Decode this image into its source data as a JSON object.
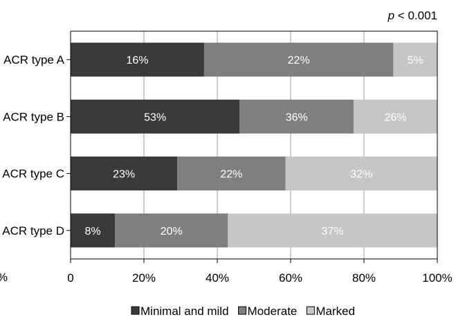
{
  "chart_data": {
    "type": "bar",
    "orientation": "horizontal",
    "stacked": true,
    "annotation": {
      "italic_part": "p",
      "rest": " < 0.001"
    },
    "categories": [
      "ACR type A",
      "ACR type B",
      "ACR type C",
      "ACR type D"
    ],
    "series": [
      {
        "name": "Minimal and mild",
        "color": "#3a3a3a",
        "label_color": "#ffffff",
        "share": [
          36.4,
          46.1,
          29.1,
          12.1
        ],
        "labels": [
          "16%",
          "53%",
          "23%",
          "8%"
        ]
      },
      {
        "name": "Moderate",
        "color": "#7f7f7f",
        "label_color": "#ffffff",
        "share": [
          51.6,
          31.1,
          29.5,
          30.8
        ],
        "labels": [
          "22%",
          "36%",
          "22%",
          "20%"
        ]
      },
      {
        "name": "Marked",
        "color": "#c6c6c6",
        "label_color": "#ffffff",
        "share": [
          12.0,
          22.8,
          41.4,
          57.1
        ],
        "labels": [
          "5%",
          "26%",
          "32%",
          "37%"
        ]
      }
    ],
    "xlim": [
      0,
      100
    ],
    "xticks": [
      0,
      20,
      40,
      60,
      80,
      100
    ],
    "xtick_labels": [
      "0",
      "20%",
      "40%",
      "60%",
      "80%",
      "100%"
    ],
    "edge_tick_fragment": "%",
    "grid": "vertical",
    "legend_placement": "bottom-center"
  }
}
